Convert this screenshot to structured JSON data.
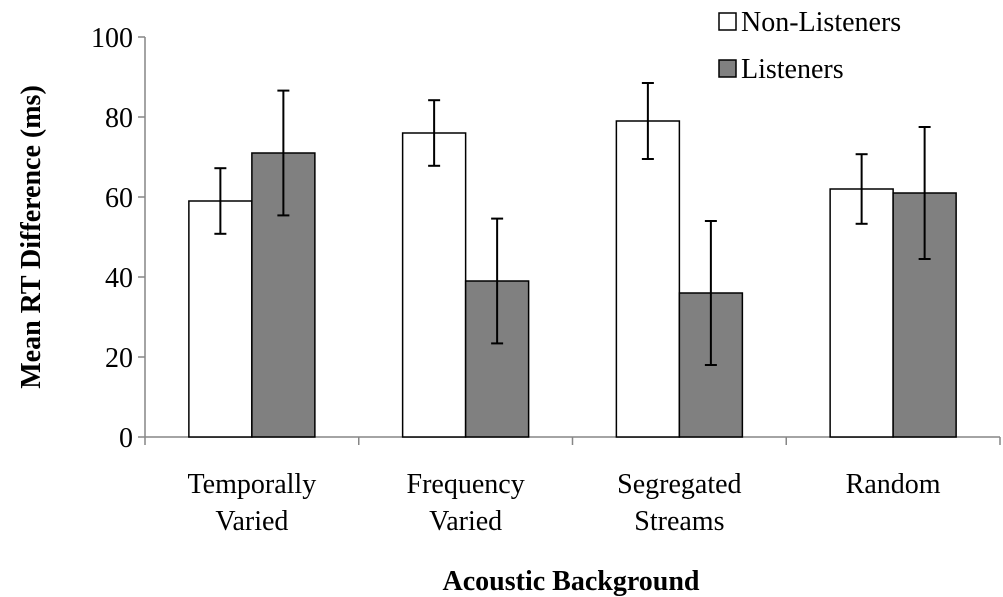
{
  "chart_data": {
    "type": "bar",
    "categories": [
      [
        "Temporally",
        "Varied"
      ],
      [
        "Frequency",
        "Varied"
      ],
      [
        "Segregated",
        "Streams"
      ],
      [
        "Random"
      ]
    ],
    "series": [
      {
        "name": "Non-Listeners",
        "values": [
          59,
          76,
          79,
          62
        ],
        "errors": [
          8.2,
          8.2,
          9.5,
          8.7
        ],
        "color": "#ffffff"
      },
      {
        "name": "Listeners",
        "values": [
          71,
          39,
          36,
          61
        ],
        "errors": [
          15.6,
          15.6,
          18.0,
          16.5
        ],
        "color": "#808080"
      }
    ],
    "xlabel": "Acoustic Background",
    "ylabel": "Mean RT Difference (ms)",
    "ylim": [
      0,
      100
    ],
    "yticks": [
      0,
      20,
      40,
      60,
      80,
      100
    ],
    "grid": false,
    "legend_position": "top-right"
  }
}
